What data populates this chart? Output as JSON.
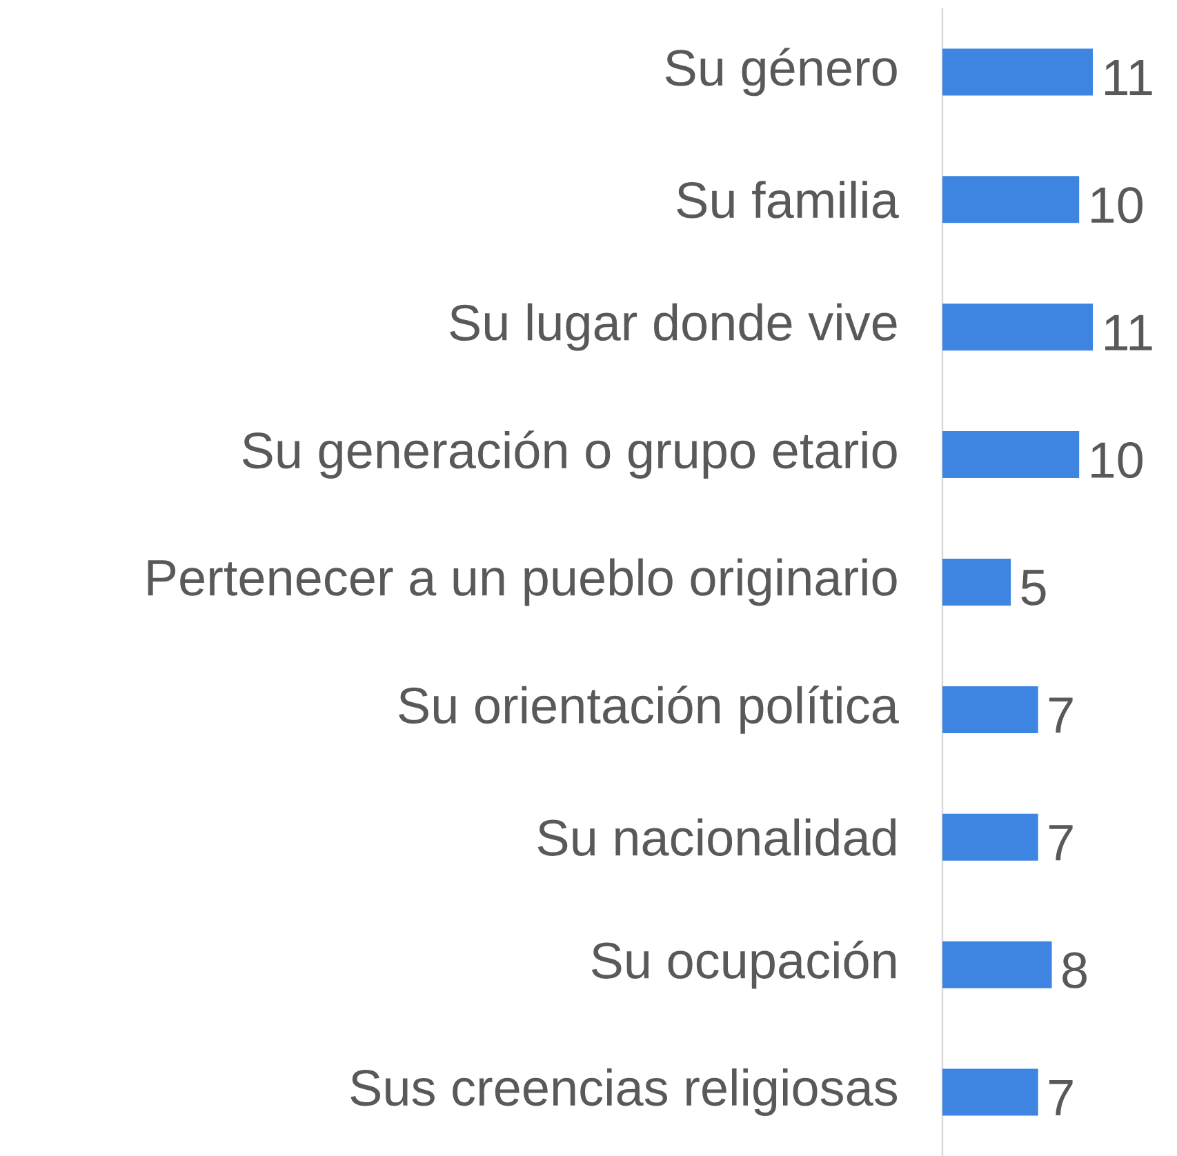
{
  "chart_data": {
    "type": "bar",
    "orientation": "horizontal",
    "categories": [
      "Su género",
      "Su familia",
      "Su lugar donde vive",
      "Su generación o grupo etario",
      "Pertenecer a un pueblo originario",
      "Su orientación política",
      "Su nacionalidad",
      "Su ocupación",
      "Sus creencias religiosas"
    ],
    "values": [
      11,
      10,
      11,
      10,
      5,
      7,
      7,
      8,
      7
    ],
    "color": "#3d85e0",
    "data_labels": true
  }
}
